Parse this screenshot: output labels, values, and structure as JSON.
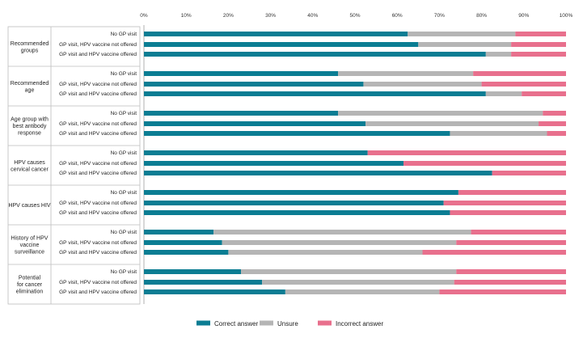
{
  "chart_data": {
    "type": "bar",
    "orientation": "horizontal",
    "stacked": true,
    "x_axis": {
      "min": 0,
      "max": 100,
      "ticks": [
        "0%",
        "10%",
        "20%",
        "30%",
        "40%",
        "50%",
        "60%",
        "70%",
        "80%",
        "90%",
        "100%"
      ],
      "grid": false
    },
    "series_colors": {
      "Correct answer": "#0b7d93",
      "Unsure": "#b5b5b5",
      "Incorrect answer": "#e8708d"
    },
    "groups": [
      {
        "label": [
          "Recommended",
          "groups"
        ],
        "bars": [
          {
            "label": "No GP visit",
            "correct": 62.5,
            "unsure": 25.5,
            "incorrect": 12.0
          },
          {
            "label": "GP visit, HPV vaccine not offered",
            "correct": 65.0,
            "unsure": 22.0,
            "incorrect": 13.0
          },
          {
            "label": "GP visit and HPV vaccine offered",
            "correct": 81.0,
            "unsure": 6.0,
            "incorrect": 13.0
          }
        ]
      },
      {
        "label": [
          "Recommended",
          "age"
        ],
        "bars": [
          {
            "label": "No GP visit",
            "correct": 46.0,
            "unsure": 32.0,
            "incorrect": 22.0
          },
          {
            "label": "GP visit, HPV vaccine not offered",
            "correct": 52.0,
            "unsure": 28.0,
            "incorrect": 20.0
          },
          {
            "label": "GP visit and HPV vaccine offered",
            "correct": 81.0,
            "unsure": 8.5,
            "incorrect": 10.5
          }
        ]
      },
      {
        "label": [
          "Age group with",
          "best antibody",
          "response"
        ],
        "bars": [
          {
            "label": "No GP visit",
            "correct": 46.0,
            "unsure": 48.5,
            "incorrect": 5.5
          },
          {
            "label": "GP visit, HPV vaccine not offered",
            "correct": 52.5,
            "unsure": 41.0,
            "incorrect": 6.5
          },
          {
            "label": "GP visit and HPV vaccine offered",
            "correct": 72.5,
            "unsure": 23.0,
            "incorrect": 4.5
          }
        ]
      },
      {
        "label": [
          "HPV causes",
          "cervical cancer"
        ],
        "bars": [
          {
            "label": "No GP visit",
            "correct": 53.0,
            "unsure": 0,
            "incorrect": 47.0
          },
          {
            "label": "GP visit, HPV vaccine not offered",
            "correct": 61.5,
            "unsure": 0,
            "incorrect": 38.5
          },
          {
            "label": "GP visit and HPV vaccine offered",
            "correct": 82.5,
            "unsure": 0,
            "incorrect": 17.5
          }
        ]
      },
      {
        "label": [
          "HPV causes HIV"
        ],
        "bars": [
          {
            "label": "No GP visit",
            "correct": 74.5,
            "unsure": 0,
            "incorrect": 25.5
          },
          {
            "label": "GP visit, HPV vaccine not offered",
            "correct": 71.0,
            "unsure": 0,
            "incorrect": 29.0
          },
          {
            "label": "GP visit and HPV vaccine offered",
            "correct": 72.5,
            "unsure": 0,
            "incorrect": 27.5
          }
        ]
      },
      {
        "label": [
          "History of HPV",
          "vaccine",
          "surveillance"
        ],
        "bars": [
          {
            "label": "No GP visit",
            "correct": 16.5,
            "unsure": 61.0,
            "incorrect": 22.5
          },
          {
            "label": "GP visit, HPV vaccine not offered",
            "correct": 18.5,
            "unsure": 55.5,
            "incorrect": 26.0
          },
          {
            "label": "GP visit and HPV vaccine offered",
            "correct": 20.0,
            "unsure": 46.0,
            "incorrect": 34.0
          }
        ]
      },
      {
        "label": [
          "Potential",
          "for cancer",
          "elimination"
        ],
        "bars": [
          {
            "label": "No GP visit",
            "correct": 23.0,
            "unsure": 51.0,
            "incorrect": 26.0
          },
          {
            "label": "GP visit, HPV vaccine not offered",
            "correct": 28.0,
            "unsure": 45.5,
            "incorrect": 26.5
          },
          {
            "label": "GP visit and HPV vaccine offered",
            "correct": 33.5,
            "unsure": 36.5,
            "incorrect": 30.0
          }
        ]
      }
    ],
    "legend": {
      "position": "bottom",
      "items": [
        "Correct answer",
        "Unsure",
        "Incorrect answer"
      ]
    }
  }
}
